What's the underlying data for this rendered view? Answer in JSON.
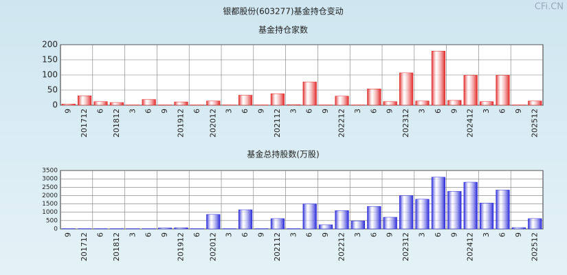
{
  "title": "银都股份(603277)基金持仓变动",
  "watermark": "CFi.CN",
  "chart_data": [
    {
      "type": "bar",
      "title": "基金持仓家数",
      "color": "#e02828",
      "categories": [
        "9",
        "201712",
        "6",
        "201812",
        "3",
        "6",
        "9",
        "201912",
        "6",
        "202012",
        "3",
        "6",
        "9",
        "202112",
        "3",
        "6",
        "9",
        "202212",
        "3",
        "6",
        "9",
        "202312",
        "3",
        "6",
        "9",
        "202412",
        "3",
        "6",
        "9",
        "202512"
      ],
      "values": [
        4,
        31,
        12,
        9,
        1,
        19,
        1,
        11,
        1,
        14,
        1,
        33,
        1,
        38,
        2,
        77,
        1,
        30,
        1,
        54,
        12,
        107,
        14,
        179,
        16,
        99,
        12,
        99,
        1,
        14
      ],
      "ylim": [
        0,
        200
      ],
      "yticks": [
        0,
        50,
        100,
        150,
        200
      ],
      "grid": true
    },
    {
      "type": "bar",
      "title": "基金总持股数(万股)",
      "color": "#2828d8",
      "categories": [
        "9",
        "201712",
        "6",
        "201812",
        "3",
        "6",
        "9",
        "201912",
        "6",
        "202012",
        "3",
        "6",
        "9",
        "202112",
        "3",
        "6",
        "9",
        "202212",
        "3",
        "6",
        "9",
        "202312",
        "3",
        "6",
        "9",
        "202412",
        "3",
        "6",
        "9",
        "202512"
      ],
      "values": [
        20,
        20,
        20,
        20,
        20,
        20,
        60,
        70,
        20,
        870,
        20,
        1150,
        20,
        620,
        20,
        1500,
        250,
        1100,
        480,
        1350,
        700,
        2000,
        1780,
        3100,
        2250,
        2800,
        1550,
        2330,
        80,
        620
      ],
      "ylim": [
        0,
        3500
      ],
      "yticks": [
        0,
        500,
        1000,
        1500,
        2000,
        2500,
        3000,
        3500
      ],
      "grid": true
    }
  ]
}
